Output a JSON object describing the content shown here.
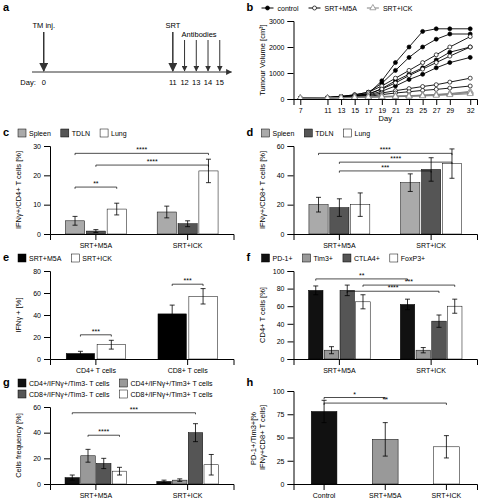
{
  "chart_data": [
    {
      "type": "timeline",
      "title": "a",
      "xlabel": "Day:",
      "xlim": [
        -1,
        16
      ],
      "xticks": [
        0,
        11,
        12,
        13,
        14,
        15
      ],
      "events": [
        {
          "label": "TM inj.",
          "x": [
            0
          ]
        },
        {
          "label": "SRT",
          "x": [
            11
          ]
        },
        {
          "label": "Antibodies",
          "x": [
            12,
            13,
            14,
            15
          ]
        }
      ]
    },
    {
      "type": "line",
      "title": "b",
      "xlabel": "Day",
      "ylabel": "Tumour Volume [cm³]",
      "x": [
        7,
        11,
        13,
        15,
        17,
        19,
        21,
        23,
        25,
        27,
        29,
        32
      ],
      "xlim": [
        6,
        33
      ],
      "xticks": [
        7,
        11,
        13,
        15,
        17,
        19,
        21,
        23,
        25,
        27,
        29,
        32
      ],
      "ylim": [
        0,
        3000
      ],
      "yticks": [
        0,
        1000,
        2000,
        3000
      ],
      "legend": "top",
      "series": [
        {
          "name": "control",
          "color": "#000000",
          "marker": "circle",
          "values": [
            30,
            60,
            90,
            130,
            200,
            700,
            1400,
            2000,
            2600,
            2700,
            2700,
            2700
          ]
        },
        {
          "name": "control",
          "color": "#000000",
          "marker": "circle",
          "values": [
            30,
            60,
            100,
            160,
            260,
            600,
            1100,
            1600,
            2000,
            2300,
            2500,
            2500
          ]
        },
        {
          "name": "control",
          "color": "#000000",
          "marker": "circle",
          "values": [
            30,
            55,
            80,
            120,
            170,
            400,
            700,
            950,
            1200,
            1500,
            1800,
            2000
          ]
        },
        {
          "name": "control",
          "color": "#000000",
          "marker": "circle",
          "values": [
            30,
            50,
            75,
            110,
            150,
            300,
            500,
            750,
            950,
            1200,
            1400,
            1600
          ]
        },
        {
          "name": "SRT+M5A",
          "color": "#000000",
          "marker": "circle-open",
          "values": [
            30,
            60,
            100,
            160,
            260,
            500,
            800,
            1100,
            1400,
            1700,
            2000,
            2400
          ]
        },
        {
          "name": "SRT+M5A",
          "color": "#000000",
          "marker": "circle-open",
          "values": [
            30,
            55,
            85,
            130,
            200,
            380,
            620,
            900,
            1150,
            1400,
            1650,
            2000
          ]
        },
        {
          "name": "SRT+M5A",
          "color": "#000000",
          "marker": "circle-open",
          "values": [
            30,
            45,
            65,
            90,
            130,
            230,
            320,
            400,
            480,
            550,
            650,
            800
          ]
        },
        {
          "name": "SRT+M5A",
          "color": "#000000",
          "marker": "circle-open",
          "values": [
            30,
            40,
            55,
            75,
            100,
            170,
            230,
            280,
            330,
            370,
            420,
            500
          ]
        },
        {
          "name": "SRT+ICK",
          "color": "#808080",
          "marker": "triangle-open",
          "values": [
            30,
            40,
            55,
            70,
            85,
            100,
            115,
            130,
            150,
            175,
            210,
            260
          ]
        },
        {
          "name": "SRT+ICK",
          "color": "#808080",
          "marker": "triangle-open",
          "values": [
            30,
            38,
            52,
            65,
            78,
            92,
            105,
            122,
            145,
            170,
            200,
            300
          ]
        },
        {
          "name": "SRT+ICK",
          "color": "#808080",
          "marker": "triangle-open",
          "values": [
            30,
            36,
            48,
            60,
            72,
            85,
            98,
            112,
            130,
            155,
            185,
            240
          ]
        },
        {
          "name": "SRT+ICK",
          "color": "#808080",
          "marker": "triangle-open",
          "values": [
            30,
            33,
            44,
            55,
            66,
            77,
            88,
            100,
            115,
            135,
            160,
            200
          ]
        }
      ]
    },
    {
      "type": "bar",
      "title": "c",
      "ylabel": "IFNγ+/CD4+ T cells [%]",
      "categories": [
        "SRT+M5A",
        "SRT+ICK"
      ],
      "ylim": [
        0,
        30
      ],
      "yticks": [
        0,
        10,
        20,
        30
      ],
      "legend": "top",
      "series": [
        {
          "name": "Spleen",
          "color": "#aaaaaa",
          "values": [
            4.5,
            7.5
          ],
          "errors": [
            1.5,
            2.0
          ]
        },
        {
          "name": "TDLN",
          "color": "#555555",
          "values": [
            1.0,
            3.5
          ],
          "errors": [
            0.5,
            1.0
          ]
        },
        {
          "name": "Lung",
          "color": "#ffffff",
          "values": [
            8.5,
            21.5
          ],
          "errors": [
            2.0,
            4.0
          ]
        }
      ],
      "annotations": [
        {
          "text": "****",
          "y": 27.5,
          "from": {
            "category": "SRT+M5A",
            "series": "Spleen"
          },
          "to": {
            "category": "SRT+ICK",
            "series": "Lung"
          }
        },
        {
          "text": "****",
          "y": 23.5,
          "from": {
            "category": "SRT+M5A",
            "series": "TDLN"
          },
          "to": {
            "category": "SRT+ICK",
            "series": "Lung"
          }
        },
        {
          "text": "**",
          "y": 16,
          "from": {
            "category": "SRT+M5A",
            "series": "Spleen"
          },
          "to": {
            "category": "SRT+M5A",
            "series": "Lung"
          }
        }
      ]
    },
    {
      "type": "bar",
      "title": "d",
      "ylabel": "IFNγ+/CD8+ T cells [%]",
      "categories": [
        "SRT+M5A",
        "SRT+ICK"
      ],
      "ylim": [
        0,
        60
      ],
      "yticks": [
        0,
        20,
        40,
        60
      ],
      "legend": "top",
      "series": [
        {
          "name": "Spleen",
          "color": "#aaaaaa",
          "values": [
            20,
            35
          ],
          "errors": [
            5,
            6
          ]
        },
        {
          "name": "TDLN",
          "color": "#555555",
          "values": [
            18,
            44
          ],
          "errors": [
            6,
            8
          ]
        },
        {
          "name": "Lung",
          "color": "#ffffff",
          "values": [
            20,
            48
          ],
          "errors": [
            8,
            10
          ]
        }
      ],
      "annotations": [
        {
          "text": "****",
          "y": 55,
          "from": {
            "category": "SRT+M5A",
            "series": "Spleen"
          },
          "to": {
            "category": "SRT+ICK",
            "series": "Lung"
          }
        },
        {
          "text": "****",
          "y": 49,
          "from": {
            "category": "SRT+M5A",
            "series": "TDLN"
          },
          "to": {
            "category": "SRT+ICK",
            "series": "Lung"
          }
        },
        {
          "text": "***",
          "y": 43,
          "from": {
            "category": "SRT+M5A",
            "series": "TDLN"
          },
          "to": {
            "category": "SRT+ICK",
            "series": "TDLN"
          }
        }
      ]
    },
    {
      "type": "bar",
      "title": "e",
      "ylabel": "IFNγ + [%]",
      "categories": [
        "CD4+ T cells",
        "CD8+ T cells"
      ],
      "ylim": [
        0,
        80
      ],
      "yticks": [
        0,
        20,
        40,
        60,
        80
      ],
      "legend": "top",
      "series": [
        {
          "name": "SRT+M5A",
          "color": "#000000",
          "values": [
            5,
            41
          ],
          "errors": [
            2,
            8
          ]
        },
        {
          "name": "SRT+ICK",
          "color": "#ffffff",
          "values": [
            13,
            57
          ],
          "errors": [
            4,
            7
          ]
        }
      ],
      "annotations": [
        {
          "text": "***",
          "y": 22,
          "from": {
            "category": "CD4+ T cells",
            "series": "SRT+M5A"
          },
          "to": {
            "category": "CD4+ T cells",
            "series": "SRT+ICK"
          }
        },
        {
          "text": "***",
          "y": 68,
          "from": {
            "category": "CD8+ T cells",
            "series": "SRT+M5A"
          },
          "to": {
            "category": "CD8+ T cells",
            "series": "SRT+ICK"
          }
        }
      ]
    },
    {
      "type": "bar",
      "title": "f",
      "ylabel": "CD4+ T cells [%]",
      "categories": [
        "SRT+M5A",
        "SRT+ICK"
      ],
      "ylim": [
        0,
        100
      ],
      "yticks": [
        0,
        20,
        40,
        60,
        80,
        100
      ],
      "legend": "top",
      "series": [
        {
          "name": "PD-1+",
          "color": "#111111",
          "values": [
            78,
            62
          ],
          "errors": [
            5,
            6
          ]
        },
        {
          "name": "Tim3+",
          "color": "#999999",
          "values": [
            10,
            10
          ],
          "errors": [
            4,
            3
          ]
        },
        {
          "name": "CTLA4+",
          "color": "#555555",
          "values": [
            78,
            43
          ],
          "errors": [
            6,
            7
          ]
        },
        {
          "name": "FoxP3+",
          "color": "#ffffff",
          "values": [
            65,
            60
          ],
          "errors": [
            8,
            8
          ]
        }
      ],
      "annotations": [
        {
          "text": "**",
          "y": 91,
          "from": {
            "category": "SRT+M5A",
            "series": "PD-1+"
          },
          "to": {
            "category": "SRT+ICK",
            "series": "PD-1+"
          }
        },
        {
          "text": "***",
          "y": 84,
          "from": {
            "category": "SRT+M5A",
            "series": "FoxP3+"
          },
          "to": {
            "category": "SRT+ICK",
            "series": "FoxP3+"
          }
        },
        {
          "text": "****",
          "y": 77,
          "from": {
            "category": "SRT+M5A",
            "series": "CTLA4+"
          },
          "to": {
            "category": "SRT+ICK",
            "series": "CTLA4+"
          }
        }
      ]
    },
    {
      "type": "bar",
      "title": "g",
      "ylabel": "Cells frequency [%]",
      "categories": [
        "SRT+M5A",
        "SRT+ICK"
      ],
      "ylim": [
        0,
        60
      ],
      "yticks": [
        0,
        20,
        40,
        60
      ],
      "legend": "top",
      "series": [
        {
          "name": "CD4+/IFNγ+/Tim3- T cells",
          "color": "#111111",
          "values": [
            5,
            2
          ],
          "errors": [
            2,
            1
          ]
        },
        {
          "name": "CD4+/IFNγ+/Tim3+ T cells",
          "color": "#999999",
          "values": [
            22,
            3
          ],
          "errors": [
            5,
            1
          ]
        },
        {
          "name": "CD8+/IFNγ+/Tim3- T cells",
          "color": "#555555",
          "values": [
            16,
            40
          ],
          "errors": [
            4,
            7
          ]
        },
        {
          "name": "CD8+/IFNγ+/Tim3+ T cells",
          "color": "#ffffff",
          "values": [
            10,
            15
          ],
          "errors": [
            3,
            8
          ]
        }
      ],
      "annotations": [
        {
          "text": "***",
          "y": 55.5,
          "from": {
            "category": "SRT+M5A",
            "series": "CD4+/IFNγ+/Tim3- T cells"
          },
          "to": {
            "category": "SRT+ICK",
            "series": "CD8+/IFNγ+/Tim3- T cells"
          }
        },
        {
          "text": "****",
          "y": 38,
          "from": {
            "category": "SRT+M5A",
            "series": "CD4+/IFNγ+/Tim3+ T cells"
          },
          "to": {
            "category": "SRT+M5A",
            "series": "CD8+/IFNγ+/Tim3+ T cells"
          }
        }
      ]
    },
    {
      "type": "bar",
      "title": "h",
      "ylabel": "PD-1+/Tim3+[% IFNγ+CD8+ T cells]",
      "categories": [
        "Control",
        "SRT+M5A",
        "SRT+ICK"
      ],
      "values": [
        78,
        48,
        40
      ],
      "errors": [
        12,
        18,
        12
      ],
      "colors": [
        "#111111",
        "#999999",
        "#ffffff"
      ],
      "ylim": [
        0,
        100
      ],
      "yticks": [
        0,
        25,
        50,
        75,
        100
      ],
      "annotations": [
        {
          "text": "*",
          "y": 93,
          "from": {
            "category": "Control"
          },
          "to": {
            "category": "SRT+M5A"
          }
        },
        {
          "text": "**",
          "y": 87,
          "from": {
            "category": "Control"
          },
          "to": {
            "category": "SRT+ICK"
          }
        }
      ]
    }
  ]
}
